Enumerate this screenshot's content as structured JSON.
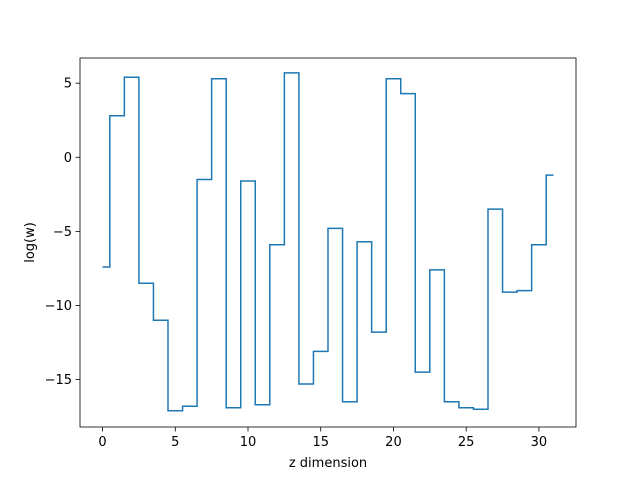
{
  "chart_data": {
    "type": "line",
    "drawstyle": "steps-mid",
    "xlabel": "z dimension",
    "ylabel": "log(w)",
    "xlim": [
      -1.55,
      32.55
    ],
    "ylim": [
      -18.2,
      6.7
    ],
    "xticks": [
      0,
      5,
      10,
      15,
      20,
      25,
      30
    ],
    "yticks": [
      -15,
      -10,
      -5,
      0,
      5
    ],
    "grid": false,
    "line_color": "#1f77b4",
    "x": [
      0,
      1,
      2,
      3,
      4,
      5,
      6,
      7,
      8,
      9,
      10,
      11,
      12,
      13,
      14,
      15,
      16,
      17,
      18,
      19,
      20,
      21,
      22,
      23,
      24,
      25,
      26,
      27,
      28,
      29,
      30,
      31
    ],
    "y": [
      -7.4,
      2.8,
      5.4,
      -8.5,
      -11.0,
      -17.1,
      -16.8,
      -1.5,
      5.3,
      -16.9,
      -1.6,
      -16.7,
      -5.9,
      5.7,
      -15.3,
      -13.1,
      -4.8,
      -16.5,
      -5.7,
      -11.8,
      5.3,
      4.3,
      -14.5,
      -7.6,
      -16.5,
      -16.9,
      -17.0,
      -3.5,
      -9.1,
      -9.0,
      -5.9,
      -1.2
    ]
  }
}
